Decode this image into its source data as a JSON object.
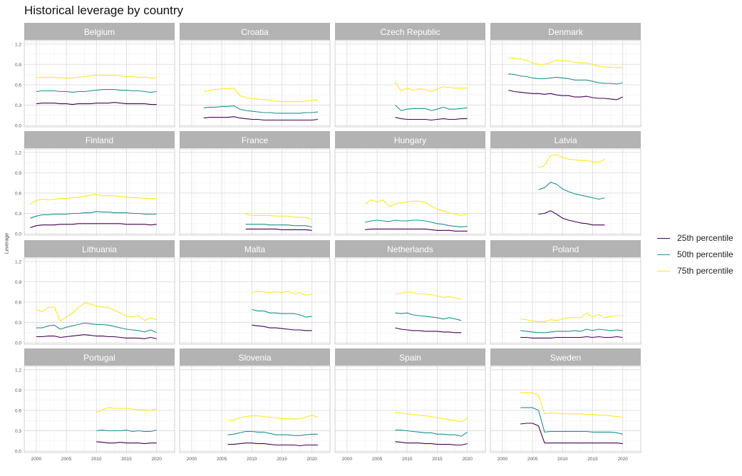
{
  "title": "Historical leverage by country",
  "ylabel": "Leverage",
  "legend_position": "right",
  "chart_data": {
    "type": "line",
    "facet_layout": {
      "rows": 4,
      "cols": 4
    },
    "xlim": [
      1998,
      2023
    ],
    "ylim": [
      -0.02,
      1.25
    ],
    "x_ticks": [
      2000,
      2005,
      2010,
      2015,
      2020
    ],
    "y_ticks": [
      0.0,
      0.3,
      0.6,
      0.9,
      1.2
    ],
    "y_tick_labels": [
      "0.0",
      "0.3",
      "0.6",
      "0.9",
      "1.2"
    ],
    "grid": true,
    "series_meta": [
      {
        "key": "p25",
        "name": "25th percentile",
        "color": "#440154"
      },
      {
        "key": "p50",
        "name": "50th percentile",
        "color": "#21908C"
      },
      {
        "key": "p75",
        "name": "75th percentile",
        "color": "#FDE725"
      }
    ],
    "panels": [
      {
        "country": "Belgium",
        "x": [
          2000,
          2001,
          2002,
          2003,
          2004,
          2005,
          2006,
          2007,
          2008,
          2009,
          2010,
          2011,
          2012,
          2013,
          2014,
          2015,
          2016,
          2017,
          2018,
          2019,
          2020
        ],
        "p25": [
          0.32,
          0.33,
          0.33,
          0.33,
          0.32,
          0.32,
          0.31,
          0.32,
          0.32,
          0.32,
          0.33,
          0.33,
          0.33,
          0.34,
          0.33,
          0.32,
          0.32,
          0.32,
          0.32,
          0.31,
          0.31
        ],
        "p50": [
          0.5,
          0.51,
          0.51,
          0.51,
          0.5,
          0.5,
          0.49,
          0.5,
          0.5,
          0.51,
          0.52,
          0.53,
          0.53,
          0.53,
          0.52,
          0.52,
          0.51,
          0.51,
          0.5,
          0.49,
          0.5
        ],
        "p75": [
          0.7,
          0.71,
          0.71,
          0.71,
          0.7,
          0.7,
          0.7,
          0.71,
          0.72,
          0.73,
          0.74,
          0.74,
          0.74,
          0.74,
          0.73,
          0.72,
          0.72,
          0.71,
          0.71,
          0.7,
          0.7
        ]
      },
      {
        "country": "Croatia",
        "x": [
          2002,
          2003,
          2004,
          2005,
          2006,
          2007,
          2008,
          2009,
          2010,
          2011,
          2012,
          2013,
          2014,
          2015,
          2016,
          2017,
          2018,
          2019,
          2020,
          2021
        ],
        "p25": [
          0.11,
          0.12,
          0.12,
          0.12,
          0.12,
          0.13,
          0.11,
          0.1,
          0.09,
          0.09,
          0.08,
          0.08,
          0.08,
          0.08,
          0.08,
          0.08,
          0.08,
          0.08,
          0.08,
          0.09
        ],
        "p50": [
          0.26,
          0.27,
          0.27,
          0.28,
          0.28,
          0.29,
          0.24,
          0.22,
          0.21,
          0.2,
          0.19,
          0.19,
          0.18,
          0.18,
          0.18,
          0.18,
          0.18,
          0.19,
          0.19,
          0.2
        ],
        "p75": [
          0.5,
          0.52,
          0.53,
          0.54,
          0.54,
          0.55,
          0.44,
          0.41,
          0.4,
          0.39,
          0.38,
          0.37,
          0.36,
          0.35,
          0.35,
          0.35,
          0.35,
          0.36,
          0.37,
          0.38
        ]
      },
      {
        "country": "Czech Republic",
        "x": [
          2008,
          2009,
          2010,
          2011,
          2012,
          2013,
          2014,
          2015,
          2016,
          2017,
          2018,
          2019,
          2020
        ],
        "p25": [
          0.12,
          0.1,
          0.09,
          0.09,
          0.09,
          0.09,
          0.08,
          0.09,
          0.1,
          0.09,
          0.09,
          0.1,
          0.1
        ],
        "p50": [
          0.3,
          0.22,
          0.24,
          0.25,
          0.25,
          0.25,
          0.22,
          0.24,
          0.27,
          0.24,
          0.24,
          0.25,
          0.26
        ],
        "p75": [
          0.64,
          0.51,
          0.55,
          0.52,
          0.54,
          0.53,
          0.5,
          0.54,
          0.57,
          0.56,
          0.55,
          0.55,
          0.55
        ]
      },
      {
        "country": "Denmark",
        "x": [
          2001,
          2002,
          2003,
          2004,
          2005,
          2006,
          2007,
          2008,
          2009,
          2010,
          2011,
          2012,
          2013,
          2014,
          2015,
          2016,
          2017,
          2018,
          2019,
          2020
        ],
        "p25": [
          0.52,
          0.5,
          0.49,
          0.48,
          0.47,
          0.47,
          0.46,
          0.47,
          0.45,
          0.44,
          0.44,
          0.42,
          0.42,
          0.43,
          0.41,
          0.4,
          0.4,
          0.39,
          0.38,
          0.42
        ],
        "p50": [
          0.76,
          0.75,
          0.73,
          0.72,
          0.7,
          0.69,
          0.69,
          0.7,
          0.71,
          0.7,
          0.69,
          0.67,
          0.67,
          0.67,
          0.65,
          0.63,
          0.62,
          0.62,
          0.61,
          0.63
        ],
        "p75": [
          1.0,
          0.99,
          0.98,
          0.96,
          0.92,
          0.9,
          0.9,
          0.93,
          0.96,
          0.95,
          0.95,
          0.93,
          0.92,
          0.92,
          0.9,
          0.87,
          0.86,
          0.86,
          0.85,
          0.86
        ]
      },
      {
        "country": "Finland",
        "x": [
          1999,
          2000,
          2001,
          2002,
          2003,
          2004,
          2005,
          2006,
          2007,
          2008,
          2009,
          2010,
          2011,
          2012,
          2013,
          2014,
          2015,
          2016,
          2017,
          2018,
          2019,
          2020
        ],
        "p25": [
          0.09,
          0.12,
          0.13,
          0.13,
          0.13,
          0.14,
          0.14,
          0.14,
          0.15,
          0.15,
          0.15,
          0.15,
          0.15,
          0.15,
          0.15,
          0.15,
          0.14,
          0.14,
          0.14,
          0.14,
          0.13,
          0.14
        ],
        "p50": [
          0.23,
          0.26,
          0.28,
          0.28,
          0.29,
          0.29,
          0.29,
          0.3,
          0.3,
          0.31,
          0.31,
          0.33,
          0.32,
          0.32,
          0.31,
          0.31,
          0.31,
          0.3,
          0.3,
          0.29,
          0.29,
          0.29
        ],
        "p75": [
          0.44,
          0.49,
          0.51,
          0.5,
          0.51,
          0.52,
          0.52,
          0.53,
          0.54,
          0.55,
          0.57,
          0.58,
          0.56,
          0.56,
          0.56,
          0.55,
          0.54,
          0.53,
          0.53,
          0.52,
          0.52,
          0.52
        ]
      },
      {
        "country": "France",
        "x": [
          2009,
          2010,
          2011,
          2012,
          2013,
          2014,
          2015,
          2016,
          2017,
          2018,
          2019,
          2020
        ],
        "p25": [
          0.07,
          0.07,
          0.07,
          0.07,
          0.07,
          0.07,
          0.06,
          0.06,
          0.06,
          0.06,
          0.06,
          0.05
        ],
        "p50": [
          0.14,
          0.14,
          0.14,
          0.14,
          0.13,
          0.13,
          0.13,
          0.13,
          0.12,
          0.12,
          0.12,
          0.1
        ],
        "p75": [
          0.29,
          0.27,
          0.27,
          0.27,
          0.27,
          0.26,
          0.26,
          0.26,
          0.25,
          0.24,
          0.24,
          0.21
        ]
      },
      {
        "country": "Hungary",
        "x": [
          2003,
          2004,
          2005,
          2006,
          2007,
          2008,
          2009,
          2010,
          2011,
          2012,
          2013,
          2014,
          2015,
          2016,
          2017,
          2018,
          2019,
          2020
        ],
        "p25": [
          0.06,
          0.07,
          0.07,
          0.07,
          0.07,
          0.07,
          0.07,
          0.07,
          0.07,
          0.07,
          0.07,
          0.06,
          0.05,
          0.05,
          0.05,
          0.04,
          0.04,
          0.04
        ],
        "p50": [
          0.17,
          0.19,
          0.2,
          0.19,
          0.18,
          0.2,
          0.19,
          0.19,
          0.2,
          0.2,
          0.19,
          0.17,
          0.15,
          0.14,
          0.12,
          0.11,
          0.1,
          0.11
        ],
        "p75": [
          0.44,
          0.5,
          0.47,
          0.5,
          0.4,
          0.44,
          0.46,
          0.47,
          0.48,
          0.48,
          0.46,
          0.41,
          0.36,
          0.34,
          0.31,
          0.29,
          0.27,
          0.29
        ]
      },
      {
        "country": "Latvia",
        "x": [
          2006,
          2007,
          2008,
          2009,
          2010,
          2011,
          2012,
          2013,
          2014,
          2015,
          2016,
          2017
        ],
        "p25": [
          0.29,
          0.3,
          0.34,
          0.29,
          0.23,
          0.2,
          0.18,
          0.16,
          0.15,
          0.13,
          0.13,
          0.13
        ],
        "p50": [
          0.65,
          0.68,
          0.76,
          0.73,
          0.66,
          0.62,
          0.59,
          0.57,
          0.55,
          0.53,
          0.51,
          0.53
        ],
        "p75": [
          0.97,
          1.01,
          1.15,
          1.17,
          1.12,
          1.1,
          1.09,
          1.08,
          1.08,
          1.06,
          1.05,
          1.1
        ]
      },
      {
        "country": "Lithuania",
        "x": [
          2000,
          2001,
          2002,
          2003,
          2004,
          2005,
          2006,
          2007,
          2008,
          2009,
          2010,
          2011,
          2012,
          2013,
          2014,
          2015,
          2016,
          2017,
          2018,
          2019,
          2020
        ],
        "p25": [
          0.09,
          0.09,
          0.1,
          0.1,
          0.08,
          0.09,
          0.1,
          0.11,
          0.12,
          0.11,
          0.1,
          0.1,
          0.09,
          0.09,
          0.08,
          0.07,
          0.07,
          0.07,
          0.06,
          0.08,
          0.06
        ],
        "p50": [
          0.22,
          0.22,
          0.25,
          0.26,
          0.2,
          0.23,
          0.25,
          0.27,
          0.29,
          0.28,
          0.27,
          0.27,
          0.26,
          0.24,
          0.22,
          0.2,
          0.19,
          0.18,
          0.16,
          0.19,
          0.15
        ],
        "p75": [
          0.49,
          0.46,
          0.52,
          0.53,
          0.32,
          0.38,
          0.44,
          0.52,
          0.59,
          0.57,
          0.54,
          0.53,
          0.52,
          0.48,
          0.44,
          0.39,
          0.38,
          0.4,
          0.33,
          0.37,
          0.34
        ]
      },
      {
        "country": "Malta",
        "x": [
          2010,
          2011,
          2012,
          2013,
          2014,
          2015,
          2016,
          2017,
          2018,
          2019,
          2020
        ],
        "p25": [
          0.26,
          0.25,
          0.24,
          0.22,
          0.22,
          0.21,
          0.2,
          0.19,
          0.19,
          0.18,
          0.18
        ],
        "p50": [
          0.49,
          0.47,
          0.47,
          0.44,
          0.44,
          0.43,
          0.43,
          0.43,
          0.41,
          0.38,
          0.39
        ],
        "p75": [
          0.74,
          0.76,
          0.75,
          0.74,
          0.75,
          0.74,
          0.76,
          0.72,
          0.74,
          0.7,
          0.72
        ]
      },
      {
        "country": "Netherlands",
        "x": [
          2008,
          2009,
          2010,
          2011,
          2012,
          2013,
          2014,
          2015,
          2016,
          2017,
          2018,
          2019
        ],
        "p25": [
          0.22,
          0.2,
          0.19,
          0.18,
          0.18,
          0.17,
          0.17,
          0.17,
          0.16,
          0.16,
          0.15,
          0.15
        ],
        "p50": [
          0.44,
          0.43,
          0.44,
          0.41,
          0.4,
          0.39,
          0.38,
          0.37,
          0.35,
          0.37,
          0.35,
          0.33
        ],
        "p75": [
          0.72,
          0.73,
          0.75,
          0.74,
          0.72,
          0.72,
          0.71,
          0.69,
          0.67,
          0.68,
          0.66,
          0.64
        ]
      },
      {
        "country": "Poland",
        "x": [
          2003,
          2004,
          2005,
          2006,
          2007,
          2008,
          2009,
          2010,
          2011,
          2012,
          2013,
          2014,
          2015,
          2016,
          2017,
          2018,
          2019,
          2020
        ],
        "p25": [
          0.08,
          0.08,
          0.07,
          0.07,
          0.07,
          0.07,
          0.08,
          0.08,
          0.08,
          0.08,
          0.08,
          0.09,
          0.08,
          0.09,
          0.08,
          0.08,
          0.09,
          0.08
        ],
        "p50": [
          0.18,
          0.17,
          0.16,
          0.15,
          0.15,
          0.16,
          0.17,
          0.17,
          0.17,
          0.18,
          0.17,
          0.2,
          0.18,
          0.2,
          0.19,
          0.18,
          0.19,
          0.18
        ],
        "p75": [
          0.35,
          0.34,
          0.32,
          0.31,
          0.31,
          0.34,
          0.33,
          0.35,
          0.37,
          0.37,
          0.37,
          0.44,
          0.38,
          0.42,
          0.37,
          0.39,
          0.4,
          0.4
        ]
      },
      {
        "country": "Portugal",
        "x": [
          2010,
          2011,
          2012,
          2013,
          2014,
          2015,
          2016,
          2017,
          2018,
          2019,
          2020
        ],
        "p25": [
          0.14,
          0.13,
          0.12,
          0.12,
          0.13,
          0.12,
          0.12,
          0.12,
          0.11,
          0.12,
          0.12
        ],
        "p50": [
          0.3,
          0.31,
          0.3,
          0.3,
          0.3,
          0.31,
          0.29,
          0.3,
          0.29,
          0.29,
          0.31
        ],
        "p75": [
          0.57,
          0.61,
          0.64,
          0.63,
          0.63,
          0.63,
          0.62,
          0.61,
          0.61,
          0.6,
          0.62
        ]
      },
      {
        "country": "Slovenia",
        "x": [
          2006,
          2007,
          2008,
          2009,
          2010,
          2011,
          2012,
          2013,
          2014,
          2015,
          2016,
          2017,
          2018,
          2019,
          2020,
          2021
        ],
        "p25": [
          0.1,
          0.1,
          0.11,
          0.12,
          0.12,
          0.11,
          0.11,
          0.1,
          0.09,
          0.09,
          0.09,
          0.09,
          0.08,
          0.09,
          0.09,
          0.09
        ],
        "p50": [
          0.24,
          0.25,
          0.27,
          0.29,
          0.29,
          0.28,
          0.28,
          0.26,
          0.24,
          0.24,
          0.24,
          0.23,
          0.23,
          0.24,
          0.25,
          0.25
        ],
        "p75": [
          0.45,
          0.46,
          0.49,
          0.51,
          0.52,
          0.52,
          0.51,
          0.5,
          0.49,
          0.48,
          0.48,
          0.47,
          0.48,
          0.5,
          0.53,
          0.5
        ]
      },
      {
        "country": "Spain",
        "x": [
          2008,
          2009,
          2010,
          2011,
          2012,
          2013,
          2014,
          2015,
          2016,
          2017,
          2018,
          2019,
          2020
        ],
        "p25": [
          0.14,
          0.13,
          0.12,
          0.12,
          0.12,
          0.11,
          0.11,
          0.1,
          0.1,
          0.1,
          0.09,
          0.09,
          0.11
        ],
        "p50": [
          0.31,
          0.31,
          0.3,
          0.29,
          0.28,
          0.27,
          0.27,
          0.25,
          0.25,
          0.24,
          0.24,
          0.22,
          0.28
        ],
        "p75": [
          0.57,
          0.56,
          0.55,
          0.54,
          0.53,
          0.52,
          0.51,
          0.49,
          0.48,
          0.46,
          0.45,
          0.43,
          0.49
        ]
      },
      {
        "country": "Sweden",
        "x": [
          2003,
          2004,
          2005,
          2006,
          2007,
          2008,
          2009,
          2010,
          2011,
          2012,
          2013,
          2014,
          2015,
          2016,
          2017,
          2018,
          2019,
          2020
        ],
        "p25": [
          0.4,
          0.41,
          0.41,
          0.37,
          0.12,
          0.12,
          0.12,
          0.12,
          0.12,
          0.12,
          0.12,
          0.12,
          0.12,
          0.12,
          0.12,
          0.12,
          0.12,
          0.11
        ],
        "p50": [
          0.64,
          0.64,
          0.64,
          0.6,
          0.28,
          0.29,
          0.29,
          0.29,
          0.29,
          0.29,
          0.29,
          0.29,
          0.28,
          0.28,
          0.28,
          0.28,
          0.27,
          0.25
        ],
        "p75": [
          0.86,
          0.86,
          0.86,
          0.82,
          0.55,
          0.56,
          0.56,
          0.55,
          0.55,
          0.55,
          0.55,
          0.54,
          0.54,
          0.53,
          0.53,
          0.52,
          0.51,
          0.5
        ]
      }
    ]
  }
}
